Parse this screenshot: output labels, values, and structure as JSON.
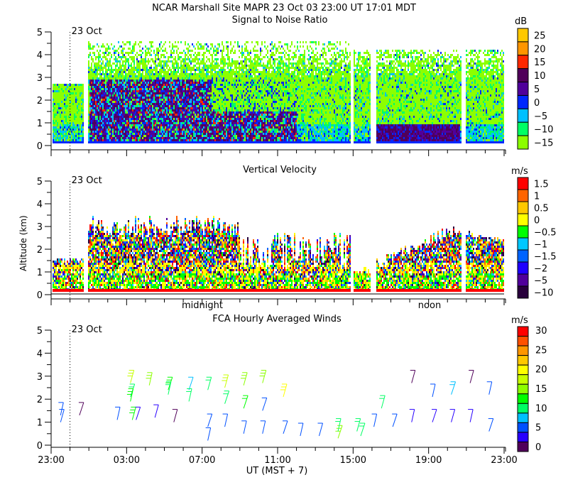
{
  "header": {
    "title": "NCAR Marshall Site   MAPR 23 Oct 03   23:00 UT   17:01   MDT"
  },
  "chart_data": [
    {
      "type": "heatmap",
      "title": "Signal to Noise Ratio",
      "ylabel": "",
      "ylim": [
        0,
        5
      ],
      "yticks": [
        "0",
        "1",
        "2",
        "3",
        "4",
        "5"
      ],
      "xlim_hours_ut": [
        23,
        47
      ],
      "date_marker": {
        "label": "23 Oct",
        "hour_ut": 24
      },
      "colorbar": {
        "unit": "dB",
        "labels": [
          "25",
          "20",
          "15",
          "10",
          "5",
          "0",
          "−5",
          "−10",
          "−15"
        ],
        "colors": [
          "#ffc800",
          "#ff9600",
          "#ff2800",
          "#50005a",
          "#50009b",
          "#0028ff",
          "#00c0ff",
          "#00ff64",
          "#8cff00"
        ]
      },
      "data_gaps_hours_ut": [
        [
          24.7,
          24.95
        ],
        [
          38.8,
          39.0
        ],
        [
          39.9,
          40.2
        ],
        [
          44.7,
          44.9
        ]
      ],
      "layers": [
        {
          "name": "low-echo",
          "from_hour": 23.0,
          "to_hour": 47.0,
          "top_km": 1.0,
          "level": "-5"
        },
        {
          "name": "nighttime-strong",
          "from_hour": 25.0,
          "to_hour": 35.0,
          "top_km": 3.2,
          "level": "5"
        },
        {
          "name": "daytime-strong",
          "from_hour": 40.2,
          "to_hour": 44.5,
          "top_km": 0.9,
          "level": "10"
        }
      ]
    },
    {
      "type": "heatmap",
      "title": "Vertical Velocity",
      "ylabel": "Altitude  (km)",
      "ylim": [
        0,
        5
      ],
      "yticks": [
        "0",
        "1",
        "2",
        "3",
        "4",
        "5"
      ],
      "xlim_hours_ut": [
        23,
        47
      ],
      "date_marker": {
        "label": "23 Oct",
        "hour_ut": 24
      },
      "local_time_labels": [
        {
          "label": "midnight",
          "hour_ut": 31
        },
        {
          "label": "noon",
          "hour_ut": 43
        }
      ],
      "colorbar": {
        "unit": "m/s",
        "labels": [
          "1.5",
          "1",
          "0.5",
          "0",
          "−0.5",
          "−1",
          "−1.5",
          "−2",
          "−5",
          "−10"
        ],
        "colors": [
          "#ff0000",
          "#ff6400",
          "#ffc800",
          "#ffff00",
          "#00ff00",
          "#00c8ff",
          "#0064ff",
          "#1e00ff",
          "#50009b",
          "#28003c"
        ]
      },
      "data_gaps_hours_ut": [
        [
          24.7,
          24.95
        ],
        [
          38.8,
          39.0
        ],
        [
          39.9,
          40.2
        ],
        [
          44.7,
          44.9
        ]
      ]
    },
    {
      "type": "scatter",
      "subtype": "wind-barbs",
      "title": "FCA Hourly Averaged Winds",
      "xlabel": "UT  (MST + 7)",
      "ylim": [
        0,
        5
      ],
      "yticks": [
        "0",
        "1",
        "2",
        "3",
        "4",
        "5"
      ],
      "xticks": [
        "23:00",
        "03:00",
        "07:00",
        "11:00",
        "15:00",
        "19:00",
        "23:00"
      ],
      "xlim_hours_ut": [
        23,
        47
      ],
      "date_marker": {
        "label": "23 Oct",
        "hour_ut": 24
      },
      "colorbar": {
        "unit": "m/s",
        "labels": [
          "30",
          "25",
          "20",
          "15",
          "10",
          "5",
          "0"
        ],
        "colors": [
          "#ff0000",
          "#ff5000",
          "#ff9600",
          "#ffc800",
          "#ffff00",
          "#c8ff00",
          "#8cff00",
          "#00ff00",
          "#00ff64",
          "#00c0ff",
          "#0050ff",
          "#2800ff",
          "#50005a"
        ]
      },
      "barbs": [
        {
          "hour": 23.5,
          "alt": 1.3,
          "speed": 5
        },
        {
          "hour": 23.5,
          "alt": 1.0,
          "speed": 5
        },
        {
          "hour": 24.5,
          "alt": 1.3,
          "speed": 1
        },
        {
          "hour": 26.5,
          "alt": 1.1,
          "speed": 5
        },
        {
          "hour": 27.2,
          "alt": 2.7,
          "speed": 17
        },
        {
          "hour": 27.2,
          "alt": 2.1,
          "speed": 10
        },
        {
          "hour": 27.2,
          "alt": 1.9,
          "speed": 13
        },
        {
          "hour": 27.3,
          "alt": 1.1,
          "speed": 13
        },
        {
          "hour": 27.5,
          "alt": 1.1,
          "speed": 3
        },
        {
          "hour": 28.2,
          "alt": 2.6,
          "speed": 14
        },
        {
          "hour": 28.5,
          "alt": 1.2,
          "speed": 3
        },
        {
          "hour": 29.2,
          "alt": 2.4,
          "speed": 13
        },
        {
          "hour": 29.2,
          "alt": 2.2,
          "speed": 10
        },
        {
          "hour": 29.5,
          "alt": 1.0,
          "speed": 1
        },
        {
          "hour": 30.3,
          "alt": 2.4,
          "speed": 7
        },
        {
          "hour": 30.3,
          "alt": 1.9,
          "speed": 10
        },
        {
          "hour": 31.3,
          "alt": 2.4,
          "speed": 10
        },
        {
          "hour": 31.3,
          "alt": 0.8,
          "speed": 6
        },
        {
          "hour": 31.3,
          "alt": 0.2,
          "speed": 6
        },
        {
          "hour": 32.2,
          "alt": 2.5,
          "speed": 17
        },
        {
          "hour": 32.2,
          "alt": 1.8,
          "speed": 10
        },
        {
          "hour": 32.2,
          "alt": 0.8,
          "speed": 5
        },
        {
          "hour": 33.2,
          "alt": 2.6,
          "speed": 14
        },
        {
          "hour": 33.2,
          "alt": 1.6,
          "speed": 12
        },
        {
          "hour": 33.2,
          "alt": 0.5,
          "speed": 4
        },
        {
          "hour": 34.2,
          "alt": 2.7,
          "speed": 14
        },
        {
          "hour": 34.2,
          "alt": 1.5,
          "speed": 4
        },
        {
          "hour": 34.2,
          "alt": 0.5,
          "speed": 4
        },
        {
          "hour": 35.3,
          "alt": 2.1,
          "speed": 20
        },
        {
          "hour": 35.3,
          "alt": 0.5,
          "speed": 4
        },
        {
          "hour": 36.2,
          "alt": 0.4,
          "speed": 6
        },
        {
          "hour": 37.2,
          "alt": 0.4,
          "speed": 6
        },
        {
          "hour": 38.2,
          "alt": 0.3,
          "speed": 16
        },
        {
          "hour": 38.2,
          "alt": 0.6,
          "speed": 10
        },
        {
          "hour": 39.2,
          "alt": 0.6,
          "speed": 9
        },
        {
          "hour": 39.4,
          "alt": 0.4,
          "speed": 10
        },
        {
          "hour": 40.1,
          "alt": 0.8,
          "speed": 5
        },
        {
          "hour": 40.5,
          "alt": 1.6,
          "speed": 10
        },
        {
          "hour": 41.1,
          "alt": 0.8,
          "speed": 5
        },
        {
          "hour": 42.1,
          "alt": 1.0,
          "speed": 3
        },
        {
          "hour": 42.1,
          "alt": 2.7,
          "speed": 1
        },
        {
          "hour": 43.2,
          "alt": 1.0,
          "speed": 3
        },
        {
          "hour": 43.2,
          "alt": 2.1,
          "speed": 4
        },
        {
          "hour": 44.2,
          "alt": 1.0,
          "speed": 2
        },
        {
          "hour": 44.2,
          "alt": 2.2,
          "speed": 8
        },
        {
          "hour": 45.2,
          "alt": 1.0,
          "speed": 2
        },
        {
          "hour": 45.2,
          "alt": 2.7,
          "speed": 1
        },
        {
          "hour": 46.2,
          "alt": 0.6,
          "speed": 4
        },
        {
          "hour": 46.2,
          "alt": 2.2,
          "speed": 6
        }
      ]
    }
  ]
}
